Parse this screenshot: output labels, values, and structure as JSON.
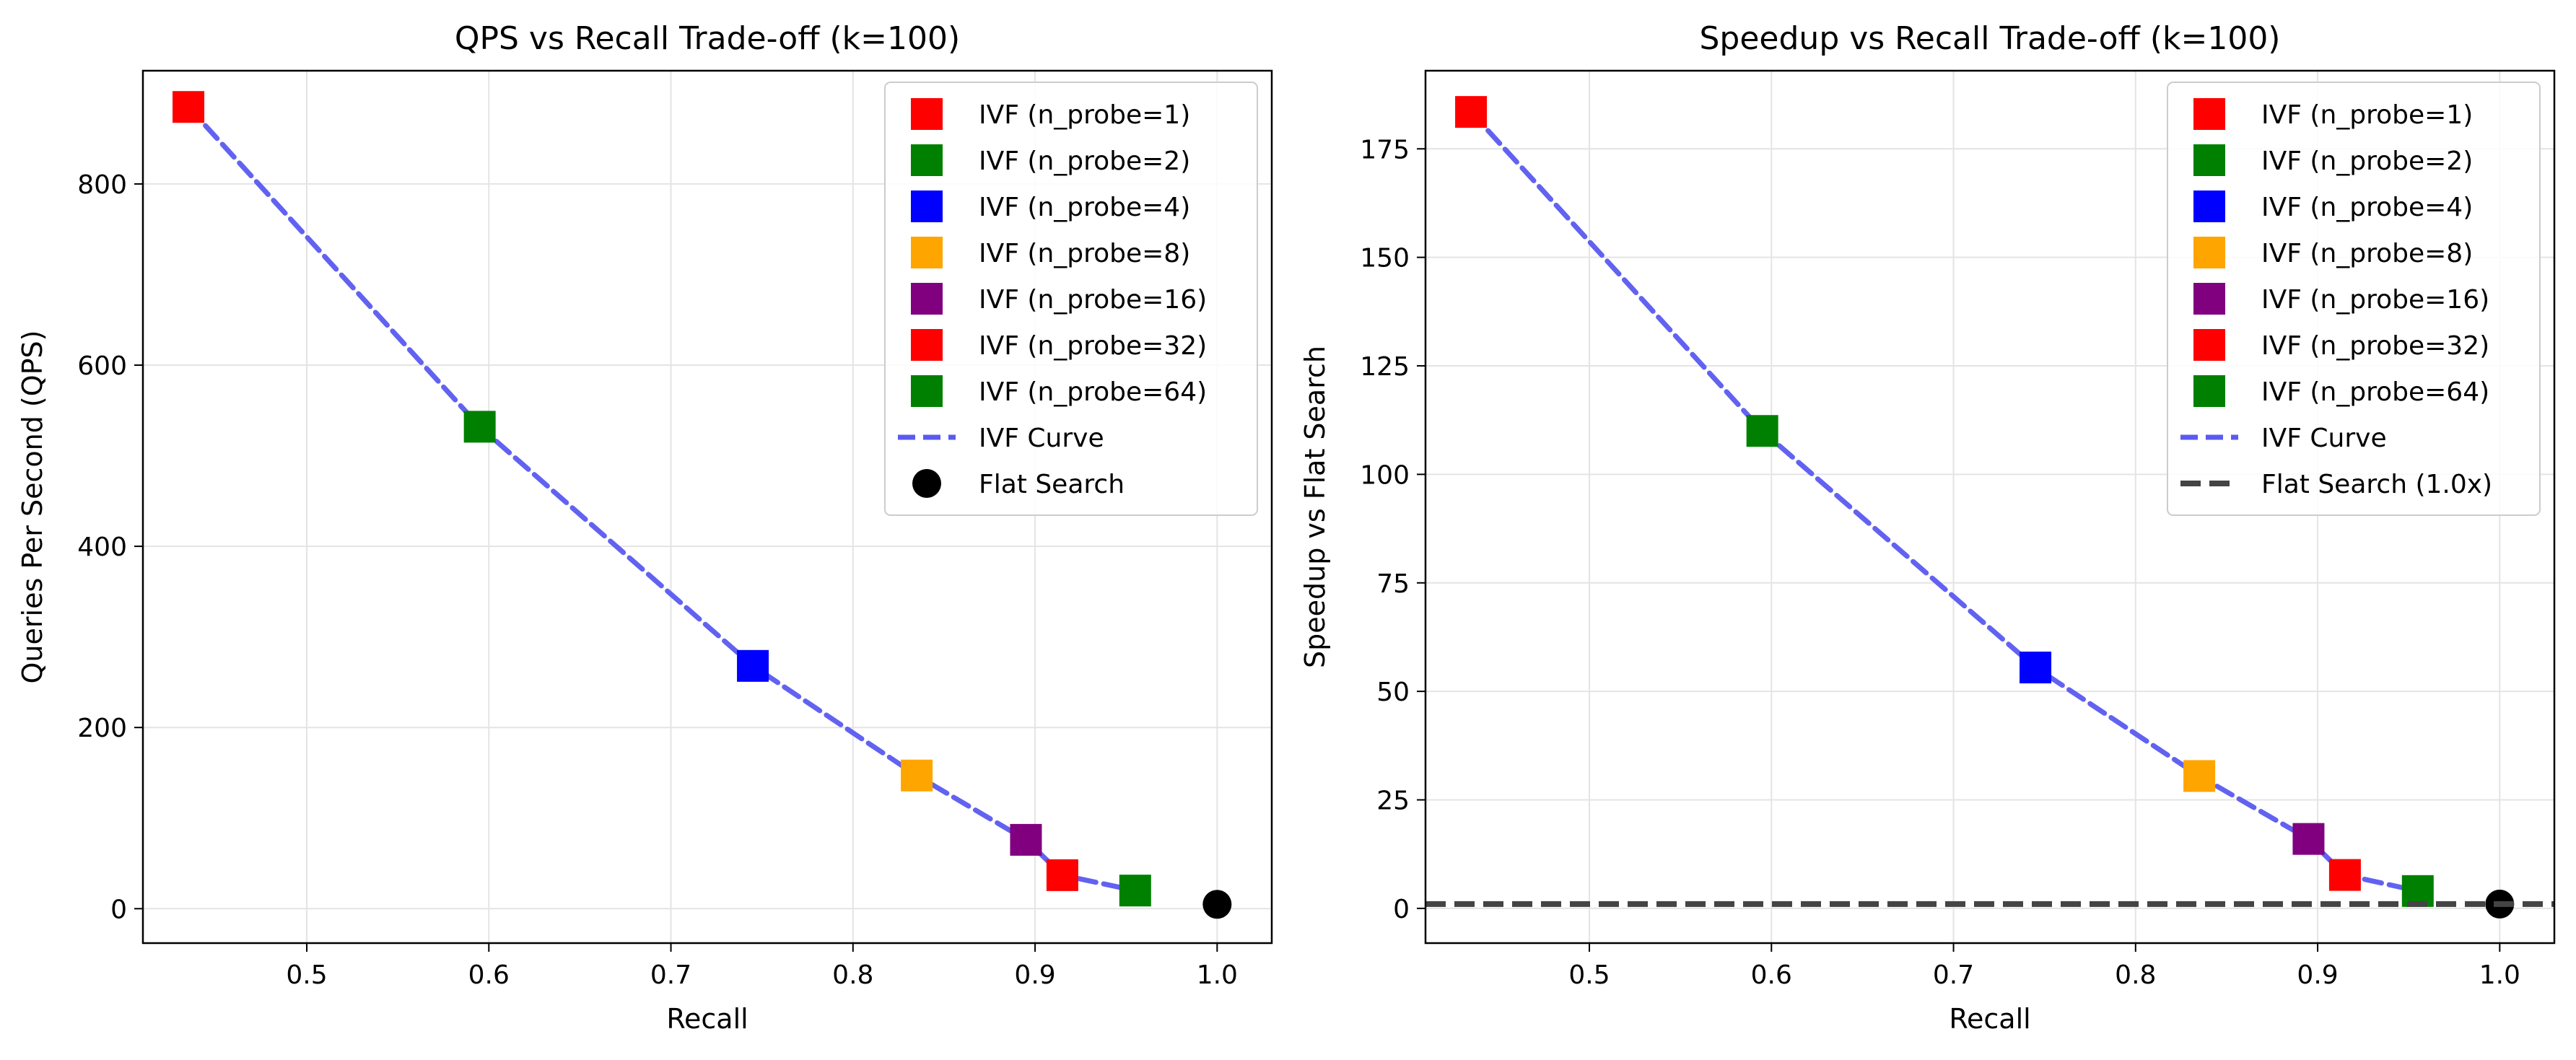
{
  "chart_data": [
    {
      "type": "scatter",
      "title": "QPS vs Recall Trade-off (k=100)",
      "xlabel": "Recall",
      "ylabel": "Queries Per Second (QPS)",
      "xlim": [
        0.41,
        1.03
      ],
      "ylim": [
        -38,
        925
      ],
      "xticks": [
        "0.5",
        "0.6",
        "0.7",
        "0.8",
        "0.9",
        "1.0"
      ],
      "yticks": [
        "0",
        "200",
        "400",
        "600",
        "800"
      ],
      "grid": true,
      "legend_position": "top-right",
      "series": [
        {
          "name": "IVF (n_probe=1)",
          "color": "#ff0000",
          "marker": "square",
          "x": [
            0.435
          ],
          "y": [
            885
          ]
        },
        {
          "name": "IVF (n_probe=2)",
          "color": "#008000",
          "marker": "square",
          "x": [
            0.595
          ],
          "y": [
            532
          ]
        },
        {
          "name": "IVF (n_probe=4)",
          "color": "#0000ff",
          "marker": "square",
          "x": [
            0.745
          ],
          "y": [
            268
          ]
        },
        {
          "name": "IVF (n_probe=8)",
          "color": "#ffa500",
          "marker": "square",
          "x": [
            0.835
          ],
          "y": [
            147
          ]
        },
        {
          "name": "IVF (n_probe=16)",
          "color": "#800080",
          "marker": "square",
          "x": [
            0.895
          ],
          "y": [
            76
          ]
        },
        {
          "name": "IVF (n_probe=32)",
          "color": "#ff0000",
          "marker": "square",
          "x": [
            0.915
          ],
          "y": [
            37
          ]
        },
        {
          "name": "IVF (n_probe=64)",
          "color": "#008000",
          "marker": "square",
          "x": [
            0.955
          ],
          "y": [
            20
          ]
        },
        {
          "name": "IVF Curve",
          "color": "#5a5af0",
          "style": "dashed-line",
          "x": [
            0.435,
            0.595,
            0.745,
            0.835,
            0.895,
            0.915,
            0.955
          ],
          "y": [
            885,
            532,
            268,
            147,
            76,
            37,
            20
          ]
        },
        {
          "name": "Flat Search",
          "color": "#000000",
          "marker": "circle",
          "x": [
            1.0
          ],
          "y": [
            4.8
          ]
        }
      ]
    },
    {
      "type": "scatter",
      "title": "Speedup vs Recall Trade-off (k=100)",
      "xlabel": "Recall",
      "ylabel": "Speedup vs Flat Search",
      "xlim": [
        0.41,
        1.03
      ],
      "ylim": [
        -8,
        193
      ],
      "xticks": [
        "0.5",
        "0.6",
        "0.7",
        "0.8",
        "0.9",
        "1.0"
      ],
      "yticks": [
        "0",
        "25",
        "50",
        "75",
        "100",
        "125",
        "150",
        "175"
      ],
      "grid": true,
      "legend_position": "top-right",
      "series": [
        {
          "name": "IVF (n_probe=1)",
          "color": "#ff0000",
          "marker": "square",
          "x": [
            0.435
          ],
          "y": [
            183.5
          ]
        },
        {
          "name": "IVF (n_probe=2)",
          "color": "#008000",
          "marker": "square",
          "x": [
            0.595
          ],
          "y": [
            110
          ]
        },
        {
          "name": "IVF (n_probe=4)",
          "color": "#0000ff",
          "marker": "square",
          "x": [
            0.745
          ],
          "y": [
            55.5
          ]
        },
        {
          "name": "IVF (n_probe=8)",
          "color": "#ffa500",
          "marker": "square",
          "x": [
            0.835
          ],
          "y": [
            30.5
          ]
        },
        {
          "name": "IVF (n_probe=16)",
          "color": "#800080",
          "marker": "square",
          "x": [
            0.895
          ],
          "y": [
            16
          ]
        },
        {
          "name": "IVF (n_probe=32)",
          "color": "#ff0000",
          "marker": "square",
          "x": [
            0.915
          ],
          "y": [
            7.7
          ]
        },
        {
          "name": "IVF (n_probe=64)",
          "color": "#008000",
          "marker": "square",
          "x": [
            0.955
          ],
          "y": [
            4
          ]
        },
        {
          "name": "IVF Curve",
          "color": "#5a5af0",
          "style": "dashed-line",
          "x": [
            0.435,
            0.595,
            0.745,
            0.835,
            0.895,
            0.915,
            0.955
          ],
          "y": [
            183.5,
            110,
            55.5,
            30.5,
            16,
            7.7,
            4
          ]
        },
        {
          "name": "Flat Search (1.0x)",
          "color": "#444444",
          "style": "dashed-hline",
          "y": [
            1
          ]
        },
        {
          "name": "",
          "color": "#000000",
          "marker": "circle",
          "legend": false,
          "x": [
            1.0
          ],
          "y": [
            1
          ]
        }
      ]
    }
  ]
}
